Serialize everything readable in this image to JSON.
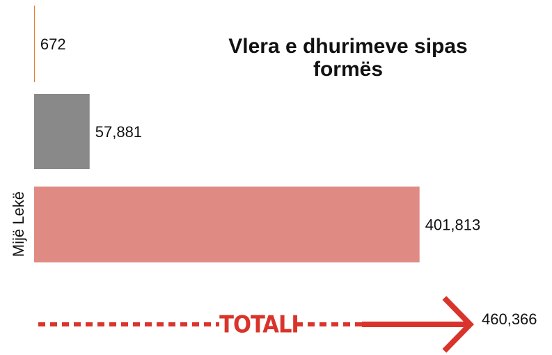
{
  "chart_data": {
    "type": "bar",
    "orientation": "horizontal",
    "title": "Vlera e dhurimeve sipas formës",
    "y_label": "Mijë Lekë",
    "values": [
      672,
      57881,
      401813
    ],
    "value_labels": [
      "672",
      "57,881",
      "401,813"
    ],
    "colors": [
      "#e8731e",
      "#898989",
      "#e08a84"
    ],
    "xlim": [
      0,
      500000
    ],
    "total": {
      "label": "TOTALI",
      "value": 460366,
      "value_label": "460,366",
      "color": "#d9342b"
    }
  }
}
